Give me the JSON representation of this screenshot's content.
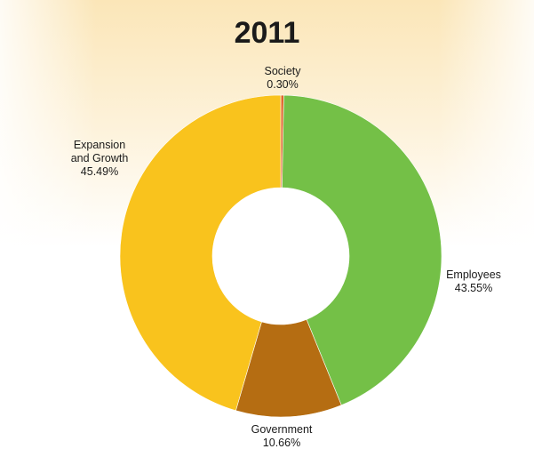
{
  "chart_data": {
    "type": "pie",
    "title": "2011",
    "slices": [
      {
        "label": [
          "Society"
        ],
        "percent_text": "0.30%",
        "value": 0.3,
        "color": "#e0672a"
      },
      {
        "label": [
          "Employees"
        ],
        "percent_text": "43.55%",
        "value": 43.55,
        "color": "#74c047"
      },
      {
        "label": [
          "Government"
        ],
        "percent_text": "10.66%",
        "value": 10.66,
        "color": "#b56d12"
      },
      {
        "label": [
          "Expansion",
          "and Growth"
        ],
        "percent_text": "45.49%",
        "value": 45.49,
        "color": "#f9c31d"
      }
    ]
  }
}
